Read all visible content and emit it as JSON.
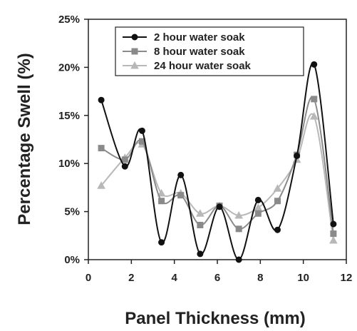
{
  "chart_data": {
    "type": "line",
    "xlabel": "Panel Thickness (mm)",
    "ylabel": "Percentage Swell (%)",
    "xlim": [
      0,
      12
    ],
    "ylim": [
      0,
      25
    ],
    "x_ticks": [
      "0",
      "2",
      "4",
      "6",
      "8",
      "10",
      "12"
    ],
    "y_ticks": [
      "0%",
      "5%",
      "10%",
      "15%",
      "20%",
      "25%"
    ],
    "grid": false,
    "legend_position": "top-center",
    "series": [
      {
        "name": "2 hour water soak",
        "color": "#111111",
        "marker": "circle",
        "x": [
          0.6,
          1.7,
          2.5,
          3.4,
          4.3,
          5.2,
          6.1,
          7.0,
          7.9,
          8.8,
          9.7,
          10.5,
          11.4
        ],
        "y": [
          16.6,
          9.7,
          13.4,
          1.8,
          8.8,
          0.6,
          5.5,
          0.0,
          6.2,
          3.1,
          10.8,
          20.3,
          3.7
        ]
      },
      {
        "name": "8 hour water soak",
        "color": "#8a8a8a",
        "marker": "square",
        "x": [
          0.6,
          1.7,
          2.5,
          3.4,
          4.3,
          5.2,
          6.1,
          7.0,
          7.9,
          8.8,
          9.7,
          10.5,
          11.4
        ],
        "y": [
          11.6,
          10.4,
          12.3,
          6.1,
          6.7,
          3.6,
          5.6,
          3.2,
          4.8,
          6.1,
          10.9,
          16.7,
          2.7
        ]
      },
      {
        "name": "24 hour water soak",
        "color": "#b8b8b8",
        "marker": "triangle",
        "x": [
          0.6,
          1.7,
          2.5,
          3.4,
          4.3,
          5.2,
          6.1,
          7.0,
          7.9,
          8.8,
          9.7,
          10.5,
          11.4
        ],
        "y": [
          7.7,
          10.6,
          12.0,
          6.9,
          6.9,
          4.8,
          5.6,
          4.6,
          5.4,
          7.4,
          10.4,
          14.9,
          2.0
        ]
      }
    ]
  }
}
